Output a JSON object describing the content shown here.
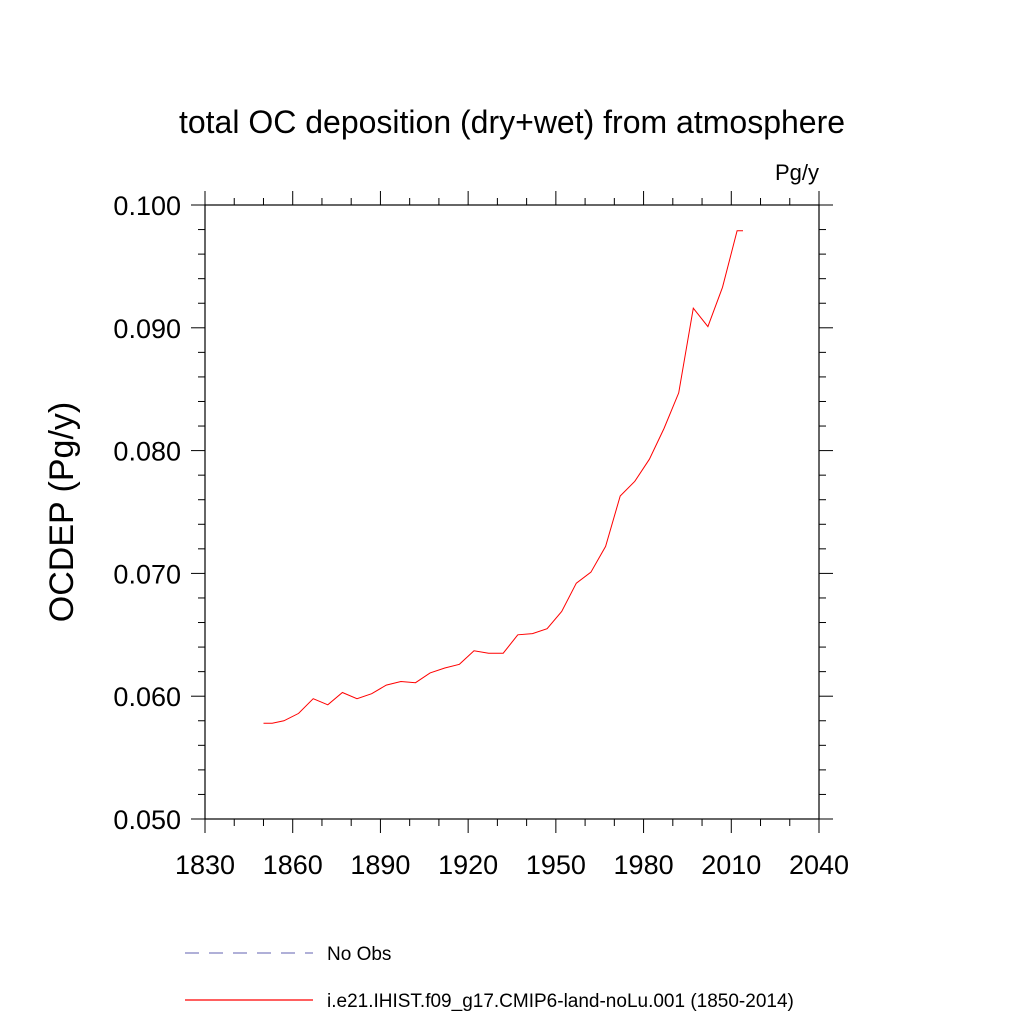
{
  "chart_data": {
    "type": "line",
    "title": "total OC deposition (dry+wet) from atmosphere",
    "units_label": "Pg/y",
    "ylabel": "OCDEP  (Pg/y)",
    "xlabel": "",
    "xlim": [
      1830,
      2040
    ],
    "ylim": [
      0.05,
      0.1
    ],
    "x_ticks": [
      1830,
      1860,
      1890,
      1920,
      1950,
      1980,
      2010,
      2040
    ],
    "x_tick_labels": [
      "1830",
      "1860",
      "1890",
      "1920",
      "1950",
      "1980",
      "2010",
      "2040"
    ],
    "y_ticks": [
      0.05,
      0.06,
      0.07,
      0.08,
      0.09,
      0.1
    ],
    "y_tick_labels": [
      "0.050",
      "0.060",
      "0.070",
      "0.080",
      "0.090",
      "0.100"
    ],
    "grid": false,
    "legend_position": "bottom",
    "series": [
      {
        "name": "No Obs",
        "color": "#8080c0",
        "style": "dashed",
        "x": [],
        "y": []
      },
      {
        "name": "i.e21.IHIST.f09_g17.CMIP6-land-noLu.001 (1850-2014)",
        "color": "#ff0000",
        "style": "solid",
        "x": [
          1850,
          1853,
          1857,
          1862,
          1867,
          1872,
          1877,
          1882,
          1887,
          1892,
          1897,
          1902,
          1907,
          1912,
          1917,
          1922,
          1927,
          1932,
          1937,
          1942,
          1947,
          1952,
          1957,
          1962,
          1967,
          1972,
          1977,
          1982,
          1987,
          1992,
          1997,
          2002,
          2007,
          2012,
          2014
        ],
        "y": [
          0.0578,
          0.0578,
          0.058,
          0.0586,
          0.0598,
          0.0593,
          0.0603,
          0.0598,
          0.0602,
          0.0609,
          0.0612,
          0.0611,
          0.0619,
          0.0623,
          0.0626,
          0.0637,
          0.0635,
          0.0635,
          0.065,
          0.0651,
          0.0655,
          0.0669,
          0.0692,
          0.0701,
          0.0722,
          0.0763,
          0.0775,
          0.0793,
          0.0818,
          0.0847,
          0.0916,
          0.0901,
          0.0933,
          0.0979,
          0.0979
        ]
      }
    ]
  }
}
